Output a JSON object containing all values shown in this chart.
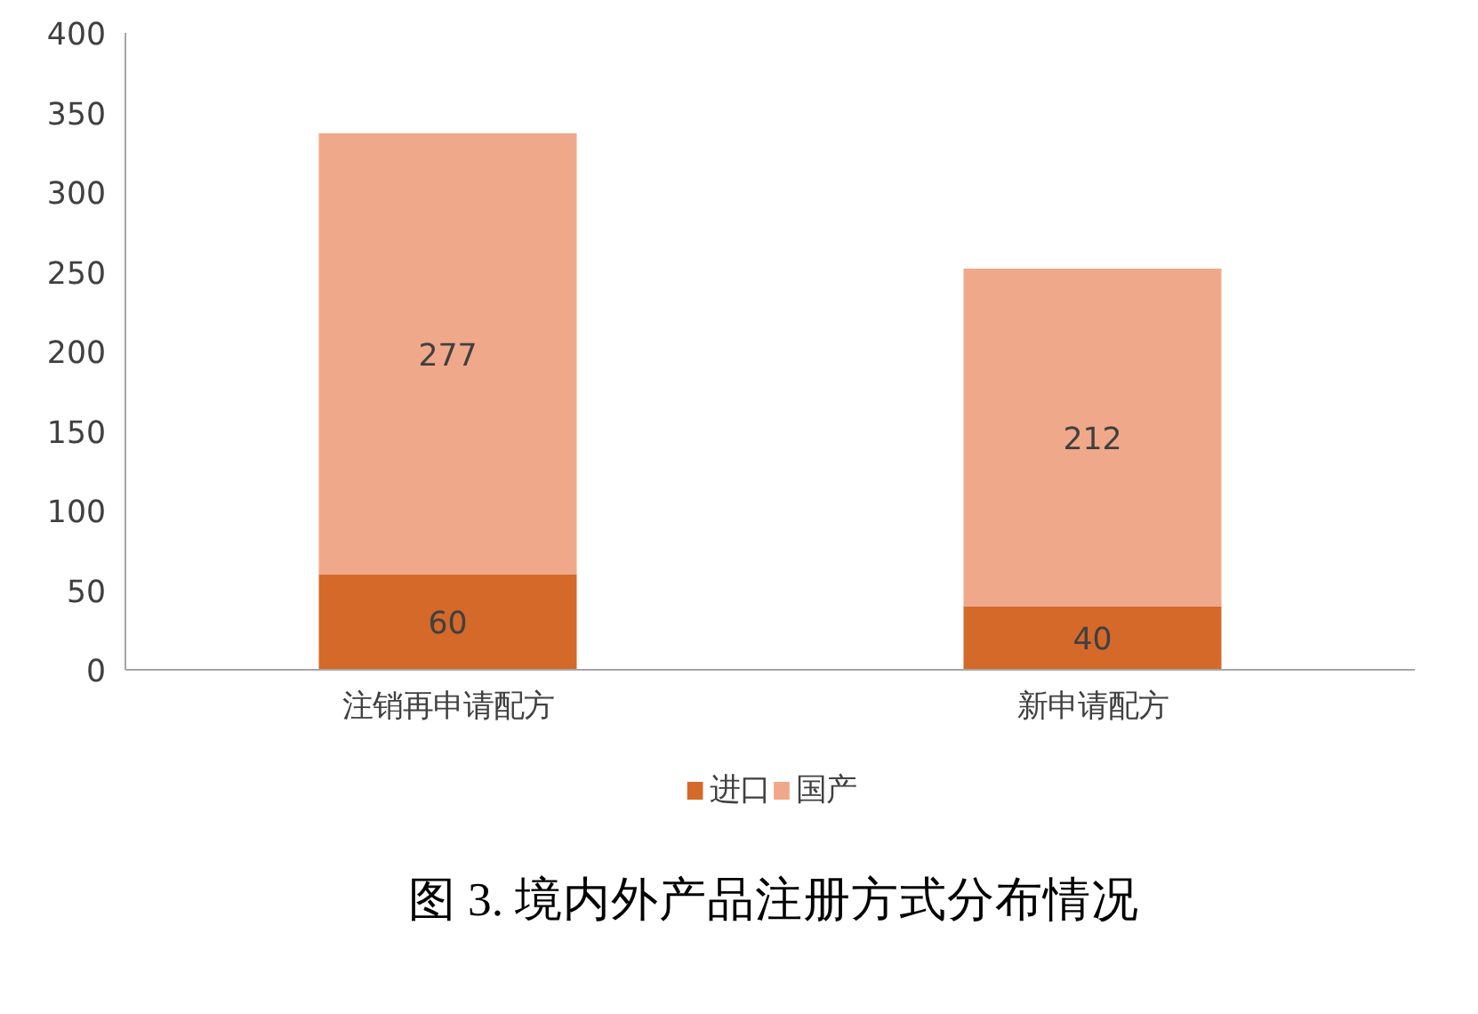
{
  "chart_data": {
    "type": "bar",
    "stacked": true,
    "categories": [
      "注销再申请配方",
      "新申请配方"
    ],
    "series": [
      {
        "name": "进口",
        "color": "#d4692a",
        "values": [
          60,
          40
        ]
      },
      {
        "name": "国产",
        "color": "#f0a88a",
        "values": [
          277,
          212
        ]
      }
    ],
    "ylim": [
      0,
      400
    ],
    "yticks": [
      0,
      50,
      100,
      150,
      200,
      250,
      300,
      350,
      400
    ],
    "grid": false,
    "legend": "bottom",
    "data_labels": true,
    "annotations": [
      "图 3. 境内外产品注册方式分布情况"
    ]
  }
}
